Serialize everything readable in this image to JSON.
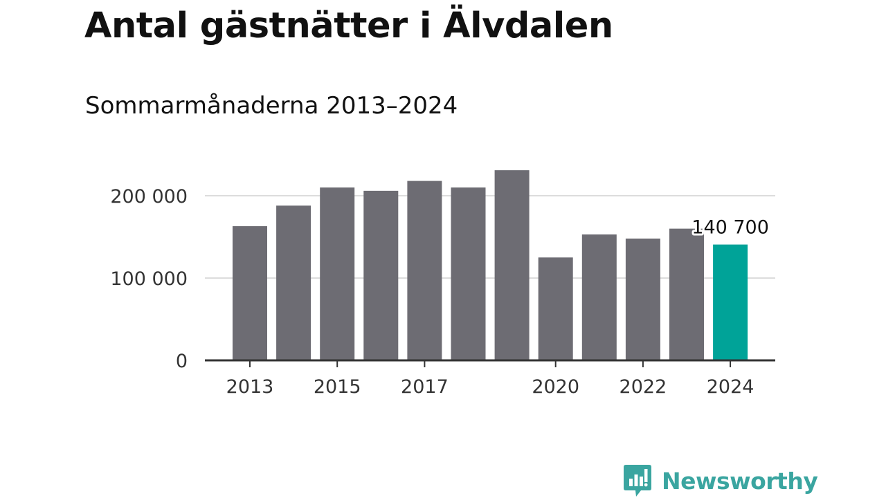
{
  "header": {
    "title": "Antal gästnätter i Älvdalen",
    "subtitle": "Sommarmånaderna 2013–2024"
  },
  "chart_data": {
    "type": "bar",
    "title": "Antal gästnätter i Älvdalen",
    "subtitle": "Sommarmånaderna 2013–2024",
    "xlabel": "",
    "ylabel": "",
    "categories": [
      "2013",
      "2014",
      "2015",
      "2016",
      "2017",
      "2018",
      "2019",
      "2020",
      "2021",
      "2022",
      "2023",
      "2024"
    ],
    "values": [
      163000,
      188000,
      210000,
      206000,
      218000,
      210000,
      231000,
      125000,
      153000,
      148000,
      160000,
      140700
    ],
    "ylim": [
      0,
      245000
    ],
    "yticks": [
      {
        "value": 0,
        "label": "0"
      },
      {
        "value": 100000,
        "label": "100 000"
      },
      {
        "value": 200000,
        "label": "200 000"
      }
    ],
    "xtick_labels": {
      "2013": "2013",
      "2015": "2015",
      "2017": "2017",
      "2020": "2020",
      "2022": "2022",
      "2024": "2024"
    },
    "highlight": {
      "category": "2024",
      "label": "140 700"
    },
    "grid": true,
    "colors": {
      "bar": "#6d6c73",
      "highlight": "#00a398",
      "grid": "#dcdcdc",
      "axis": "#333333"
    }
  },
  "brand": {
    "name": "Newsworthy",
    "icon": "newsworthy-logo-icon",
    "color": "#3aa5a0"
  }
}
